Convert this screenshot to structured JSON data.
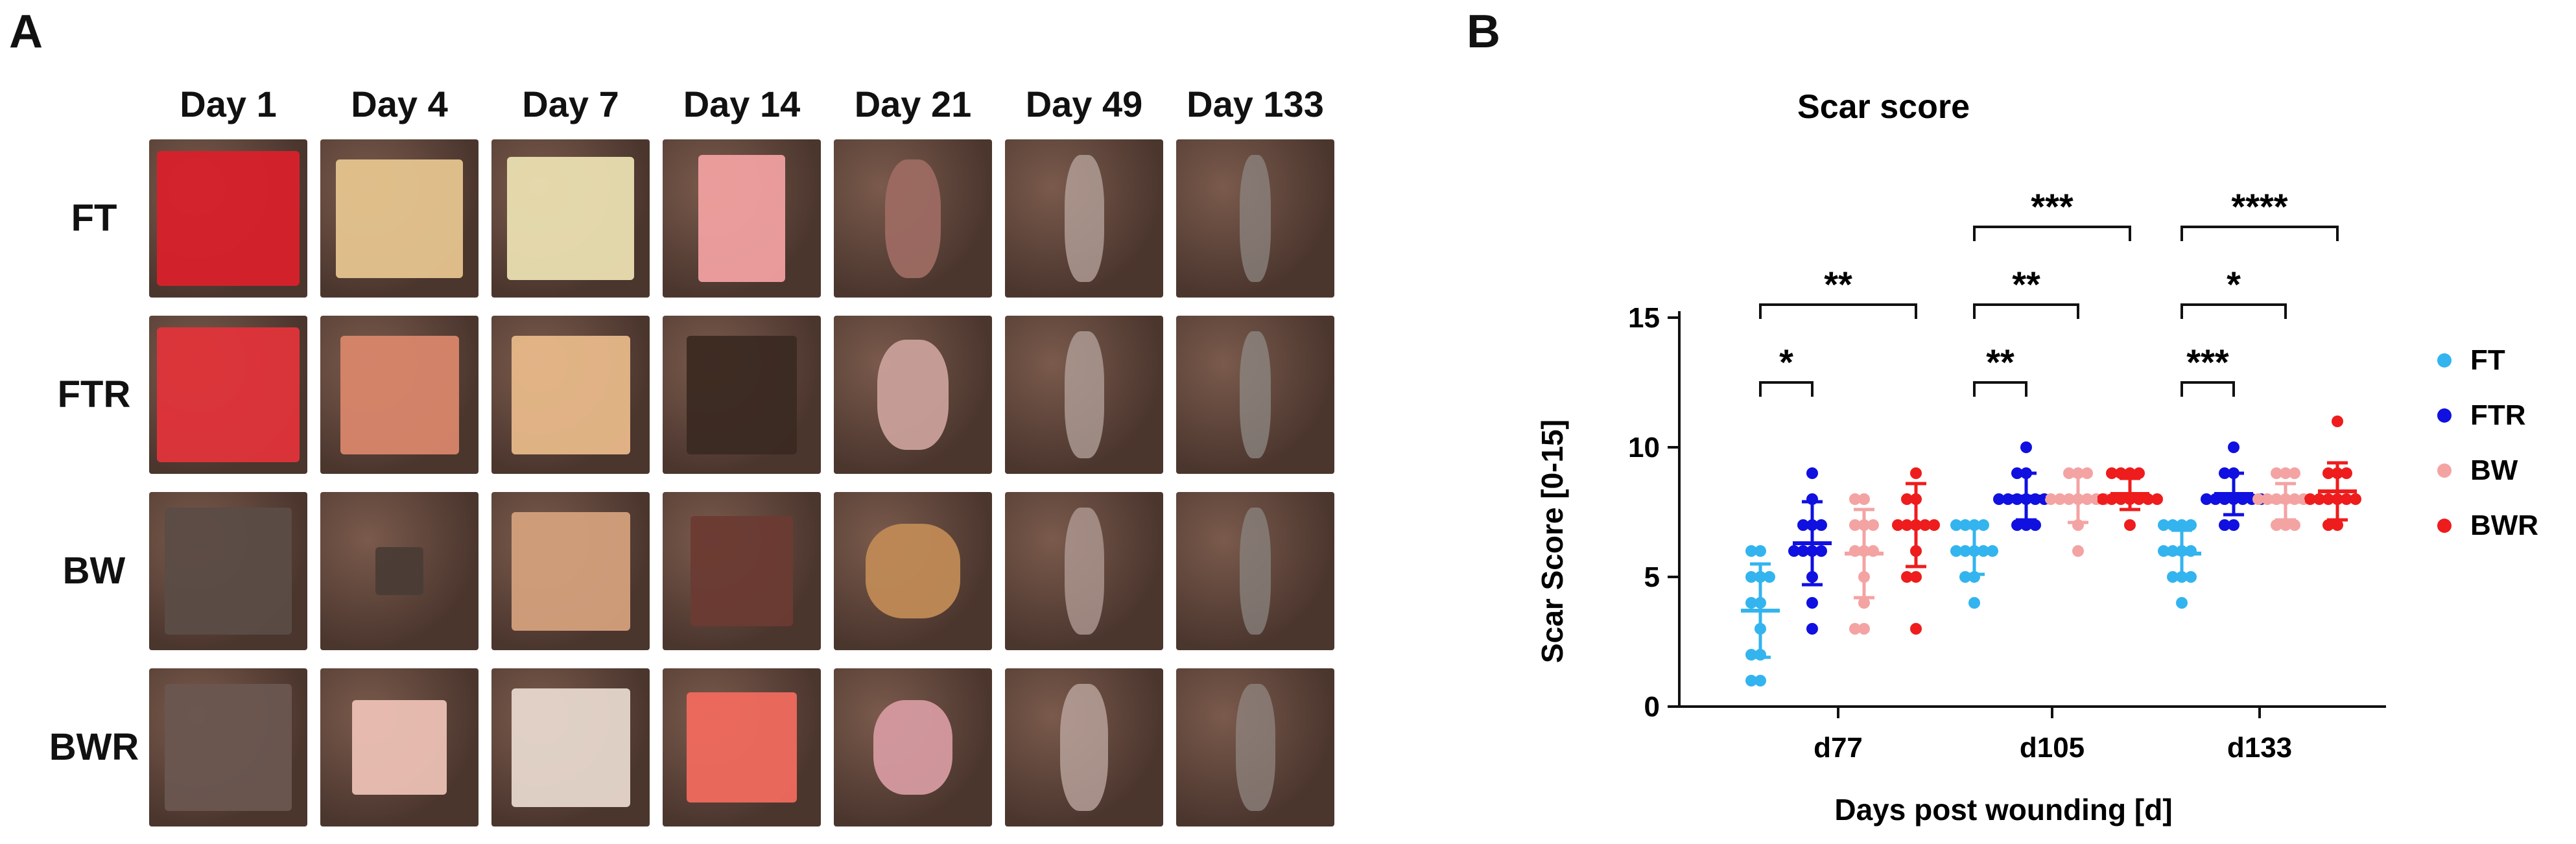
{
  "panel_a": {
    "letter": "A",
    "days": [
      "Day 1",
      "Day 4",
      "Day 7",
      "Day 14",
      "Day 21",
      "Day 49",
      "Day 133"
    ],
    "groups": [
      "FT",
      "FTR",
      "BW",
      "BWR"
    ]
  },
  "panel_b": {
    "letter": "B",
    "chart_data": {
      "type": "scatter",
      "title": "Scar score",
      "xlabel": "Days post wounding [d]",
      "ylabel": "Scar Score [0-15]",
      "ylim": [
        0,
        15
      ],
      "yticks": [
        "0",
        "5",
        "10",
        "15"
      ],
      "categories": [
        "d77",
        "d105",
        "d133"
      ],
      "legend_position": "right",
      "series": [
        {
          "name": "FT",
          "color": "#33b4ef",
          "values": [
            [
              1,
              1,
              2,
              2,
              3,
              4,
              4,
              5,
              5,
              5,
              6,
              6
            ],
            [
              4,
              5,
              5,
              6,
              6,
              6,
              6,
              6,
              7,
              7,
              7,
              7
            ],
            [
              4,
              5,
              5,
              5,
              6,
              6,
              6,
              6,
              7,
              7,
              7,
              7
            ]
          ],
          "mean": [
            3.7,
            6.0,
            5.9
          ],
          "sd": [
            1.8,
            0.9,
            0.9
          ]
        },
        {
          "name": "FTR",
          "color": "#1010e0",
          "values": [
            [
              3,
              4,
              5,
              6,
              6,
              6,
              6,
              7,
              7,
              7,
              8,
              9
            ],
            [
              7,
              7,
              7,
              8,
              8,
              8,
              8,
              8,
              8,
              9,
              9,
              10
            ],
            [
              7,
              7,
              8,
              8,
              8,
              8,
              8,
              8,
              8,
              9,
              9,
              10
            ]
          ],
          "mean": [
            6.3,
            8.1,
            8.2
          ],
          "sd": [
            1.6,
            0.9,
            0.8
          ]
        },
        {
          "name": "BW",
          "color": "#f4a3a3",
          "values": [
            [
              3,
              3,
              4,
              5,
              6,
              6,
              6,
              7,
              7,
              7,
              8,
              8
            ],
            [
              6,
              7,
              8,
              8,
              8,
              8,
              8,
              8,
              8,
              9,
              9,
              9
            ],
            [
              7,
              7,
              7,
              8,
              8,
              8,
              8,
              8,
              8,
              9,
              9,
              9
            ]
          ],
          "mean": [
            5.9,
            8.0,
            7.9
          ],
          "sd": [
            1.7,
            0.9,
            0.7
          ]
        },
        {
          "name": "BWR",
          "color": "#ee1c1c",
          "values": [
            [
              3,
              5,
              5,
              6,
              7,
              7,
              7,
              7,
              7,
              8,
              8,
              9
            ],
            [
              7,
              8,
              8,
              8,
              8,
              8,
              8,
              8,
              9,
              9,
              9,
              9
            ],
            [
              7,
              7,
              8,
              8,
              8,
              8,
              8,
              8,
              9,
              9,
              9,
              11
            ]
          ],
          "mean": [
            7.0,
            8.2,
            8.3
          ],
          "sd": [
            1.6,
            0.6,
            1.1
          ]
        }
      ],
      "significance": [
        {
          "group": 0,
          "from": 0,
          "to": 1,
          "level": 12.5,
          "label": "*"
        },
        {
          "group": 0,
          "from": 0,
          "to": 3,
          "level": 15.5,
          "label": "**"
        },
        {
          "group": 1,
          "from": 0,
          "to": 1,
          "level": 12.5,
          "label": "**"
        },
        {
          "group": 1,
          "from": 0,
          "to": 2,
          "level": 15.5,
          "label": "**"
        },
        {
          "group": 1,
          "from": 0,
          "to": 3,
          "level": 18.5,
          "label": "***"
        },
        {
          "group": 2,
          "from": 0,
          "to": 1,
          "level": 12.5,
          "label": "***"
        },
        {
          "group": 2,
          "from": 0,
          "to": 2,
          "level": 15.5,
          "label": "*"
        },
        {
          "group": 2,
          "from": 0,
          "to": 3,
          "level": 18.5,
          "label": "****"
        }
      ]
    }
  }
}
